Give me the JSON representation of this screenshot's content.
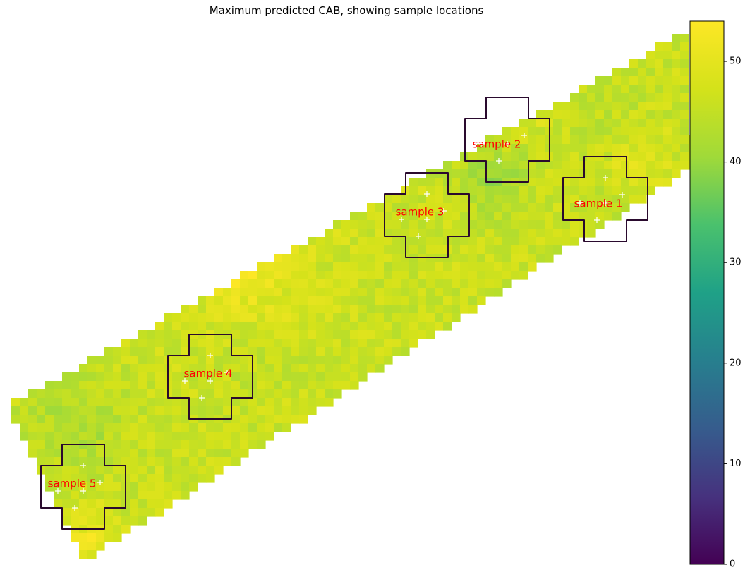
{
  "chart_data": {
    "type": "heatmap",
    "title": "Maximum predicted CAB, showing sample locations",
    "xlabel": "",
    "ylabel": "",
    "colormap": "viridis",
    "colorbar": {
      "range": [
        0,
        54
      ],
      "ticks": [
        0,
        10,
        20,
        30,
        40,
        50
      ],
      "tick_labels": [
        "0",
        "10",
        "20",
        "30",
        "40",
        "50"
      ]
    },
    "field_value_range": [
      38,
      54
    ],
    "field_typical_value": 46,
    "samples": [
      {
        "name": "sample 1",
        "label_color": "#ff0000"
      },
      {
        "name": "sample 2",
        "label_color": "#ff0000"
      },
      {
        "name": "sample 3",
        "label_color": "#ff0000"
      },
      {
        "name": "sample 4",
        "label_color": "#ff0000"
      },
      {
        "name": "sample 5",
        "label_color": "#ff0000"
      }
    ],
    "sample_outline_color": "#2a0a2e",
    "marker_color": "#ffffff",
    "axes_visible": false,
    "grid": false
  }
}
